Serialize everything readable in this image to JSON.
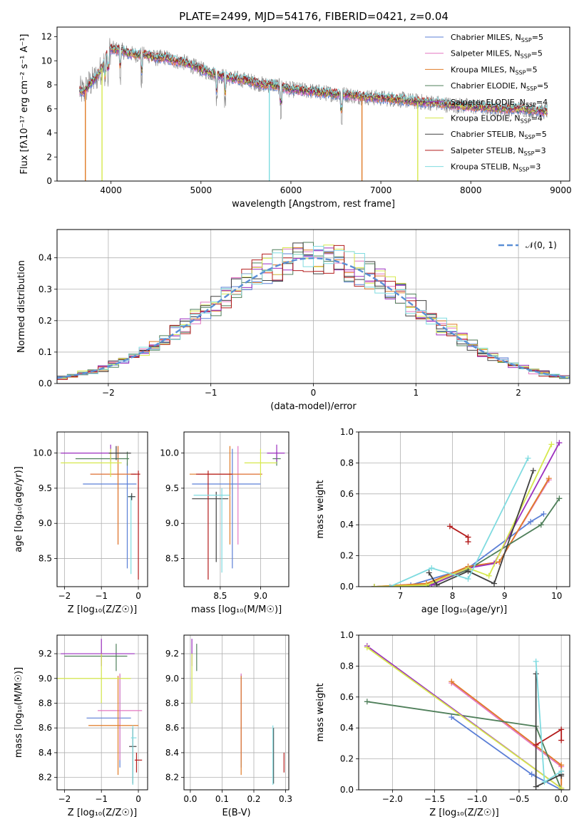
{
  "figure_title": "PLATE=2499, MJD=54176, FIBERID=0421, z=0.04",
  "models": [
    {
      "name": "Chabrier MILES",
      "nssp": "5",
      "color": "#5b7fd6"
    },
    {
      "name": "Salpeter MILES",
      "nssp": "5",
      "color": "#e377c2"
    },
    {
      "name": "Kroupa MILES",
      "nssp": "5",
      "color": "#e07b27"
    },
    {
      "name": "Chabrier ELODIE",
      "nssp": "5",
      "color": "#4f7f5a"
    },
    {
      "name": "Salpeter ELODIE",
      "nssp": "4",
      "color": "#9b2fbf"
    },
    {
      "name": "Kroupa ELODIE",
      "nssp": "4",
      "color": "#d6e84c"
    },
    {
      "name": "Chabrier STELIB",
      "nssp": "5",
      "color": "#404040"
    },
    {
      "name": "Salpeter STELIB",
      "nssp": "3",
      "color": "#b31b1b"
    },
    {
      "name": "Kroupa STELIB",
      "nssp": "3",
      "color": "#7fdbe0"
    }
  ],
  "nssp_label": "N",
  "nssp_sub": "SSP",
  "data_color": "#7f7f7f",
  "chart_data": [
    {
      "id": "spectrum",
      "type": "line",
      "xlabel": "wavelength [Angstrom, rest frame]",
      "ylabel": "Flux [fλ10⁻¹⁷ erg cm⁻² s⁻¹ A⁻¹]",
      "xlim": [
        3400,
        9100
      ],
      "ylim": [
        0,
        12.8
      ],
      "xticks": [
        4000,
        5000,
        6000,
        7000,
        8000,
        9000
      ],
      "yticks": [
        0,
        2,
        4,
        6,
        8,
        10,
        12
      ],
      "continuum": {
        "x": [
          3650,
          3700,
          3750,
          3800,
          3850,
          3900,
          3950,
          4000,
          4100,
          4200,
          4300,
          4400,
          4500,
          4600,
          4700,
          4800,
          4900,
          5000,
          5100,
          5200,
          5300,
          5400,
          5500,
          5600,
          5700,
          5800,
          5900,
          6000,
          6200,
          6400,
          6600,
          6800,
          7000,
          7200,
          7400,
          7600,
          7800,
          8000,
          8200,
          8400,
          8600,
          8800
        ],
        "y": [
          7.5,
          7.4,
          8.0,
          8.3,
          8.8,
          9.4,
          10.4,
          11.0,
          10.9,
          10.6,
          10.5,
          10.5,
          10.2,
          10.3,
          10.0,
          9.9,
          9.6,
          9.3,
          9.0,
          8.8,
          8.6,
          8.5,
          8.4,
          8.2,
          8.0,
          8.0,
          7.8,
          7.6,
          7.5,
          7.3,
          7.2,
          7.0,
          6.9,
          6.8,
          6.6,
          6.5,
          6.3,
          6.2,
          6.1,
          6.0,
          6.0,
          5.8
        ]
      },
      "absorption_lines": [
        3934,
        3969,
        4102,
        4340,
        5175,
        5269,
        5890,
        6563
      ],
      "masked_drops": [
        3715,
        3900,
        5760,
        6790,
        7410
      ]
    },
    {
      "id": "residuals",
      "type": "histogram",
      "xlabel": "(data-model)/error",
      "ylabel": "Normed distribution",
      "xlim": [
        -2.5,
        2.5
      ],
      "ylim": [
        0,
        0.49
      ],
      "xticks": [
        -2,
        -1,
        0,
        1,
        2
      ],
      "yticks": [
        0.0,
        0.1,
        0.2,
        0.3,
        0.4
      ],
      "bin_width": 0.1,
      "reference_curve": "N(0,1)",
      "legend_label": "𝒩(0, 1)",
      "legend_loc": "upper right"
    },
    {
      "id": "age-vs-Z",
      "type": "errorbar",
      "xlabel": "Z [log₁₀(Z/Z☉)]",
      "ylabel": "age  [log₁₀(age/yr)]",
      "xlim": [
        -2.2,
        0.25
      ],
      "ylim": [
        8.1,
        10.3
      ],
      "xticks": [
        -2,
        -1,
        0
      ],
      "yticks": [
        8.5,
        9.0,
        9.5,
        10.0
      ],
      "points": [
        {
          "model": 0,
          "x": -0.3,
          "y": 9.56,
          "xerr": [
            1.2,
            0.25
          ],
          "yerr": [
            1.2,
            0.3
          ]
        },
        {
          "model": 1,
          "x": -0.55,
          "y": 9.7,
          "xerr": [
            0.75,
            0.5
          ],
          "yerr": [
            1.0,
            0.4
          ]
        },
        {
          "model": 2,
          "x": -0.55,
          "y": 9.7,
          "xerr": [
            0.75,
            0.5
          ],
          "yerr": [
            1.0,
            0.4
          ]
        },
        {
          "model": 3,
          "x": -0.3,
          "y": 9.92,
          "xerr": [
            1.4,
            0.05
          ],
          "yerr": [
            0.1,
            0.1
          ]
        },
        {
          "model": 4,
          "x": -0.75,
          "y": 10.0,
          "xerr": [
            1.35,
            0.05
          ],
          "yerr": [
            0.12,
            0.12
          ]
        },
        {
          "model": 5,
          "x": -0.75,
          "y": 9.86,
          "xerr": [
            1.35,
            0.3
          ],
          "yerr": [
            0.2,
            0.2
          ]
        },
        {
          "model": 6,
          "x": -0.6,
          "y": 10.0,
          "xerr": [
            0.2,
            0.4
          ],
          "yerr": [
            0.1,
            0.1
          ]
        },
        {
          "model": 7,
          "x": 0.0,
          "y": 9.7,
          "xerr": [
            0.2,
            0.05
          ],
          "yerr": [
            1.5,
            0.05
          ]
        },
        {
          "model": 8,
          "x": -0.2,
          "y": 9.38,
          "xerr": [
            0.1,
            0.1
          ],
          "yerr": [
            1.1,
            0.02
          ]
        },
        {
          "model": 6,
          "x": -0.18,
          "y": 9.38,
          "xerr": [
            0.1,
            0.1
          ],
          "yerr": [
            0.05,
            0.05
          ]
        }
      ]
    },
    {
      "id": "age-vs-mass",
      "type": "errorbar",
      "xlabel": "mass [log₁₀(M/M☉)]",
      "ylabel": "",
      "xlim": [
        8.05,
        9.35
      ],
      "ylim": [
        8.1,
        10.3
      ],
      "xticks": [
        8.5,
        9.0
      ],
      "yticks": [
        8.5,
        9.0,
        9.5,
        10.0
      ],
      "points": [
        {
          "model": 0,
          "x": 8.65,
          "y": 9.56,
          "xerr": [
            0.5,
            0.35
          ],
          "yerr": [
            1.2,
            0.5
          ]
        },
        {
          "model": 1,
          "x": 8.72,
          "y": 9.7,
          "xerr": [
            0.5,
            0.3
          ],
          "yerr": [
            1.0,
            0.4
          ]
        },
        {
          "model": 2,
          "x": 8.62,
          "y": 9.7,
          "xerr": [
            0.5,
            0.4
          ],
          "yerr": [
            1.0,
            0.4
          ]
        },
        {
          "model": 3,
          "x": 9.2,
          "y": 9.92,
          "xerr": [
            0.05,
            0.05
          ],
          "yerr": [
            0.1,
            0.1
          ]
        },
        {
          "model": 4,
          "x": 9.2,
          "y": 10.0,
          "xerr": [
            0.12,
            0.1
          ],
          "yerr": [
            0.12,
            0.12
          ]
        },
        {
          "model": 5,
          "x": 9.0,
          "y": 9.86,
          "xerr": [
            0.2,
            0.2
          ],
          "yerr": [
            0.2,
            0.2
          ]
        },
        {
          "model": 6,
          "x": 8.45,
          "y": 9.35,
          "xerr": [
            0.3,
            0.15
          ],
          "yerr": [
            0.9,
            0.1
          ]
        },
        {
          "model": 7,
          "x": 8.35,
          "y": 9.7,
          "xerr": [
            0.15,
            0.3
          ],
          "yerr": [
            1.5,
            0.05
          ]
        },
        {
          "model": 8,
          "x": 8.52,
          "y": 9.4,
          "xerr": [
            0.35,
            0.1
          ],
          "yerr": [
            1.1,
            0.1
          ]
        }
      ]
    },
    {
      "id": "mass-weight-vs-age",
      "type": "line",
      "xlabel": "age  [log₁₀(age/yr)]",
      "ylabel": "mass weight",
      "xlim": [
        6.2,
        10.25
      ],
      "ylim": [
        0,
        1.0
      ],
      "xticks": [
        7,
        8,
        9,
        10
      ],
      "yticks": [
        0.0,
        0.2,
        0.4,
        0.6,
        0.8,
        1.0
      ],
      "series": [
        {
          "model": 0,
          "x": [
            6.5,
            7.2,
            8.3,
            9.5,
            9.75
          ],
          "y": [
            0.0,
            0.01,
            0.12,
            0.42,
            0.47
          ]
        },
        {
          "model": 1,
          "x": [
            6.5,
            7.5,
            8.3,
            8.9,
            9.85
          ],
          "y": [
            0.0,
            0.02,
            0.13,
            0.16,
            0.69
          ]
        },
        {
          "model": 2,
          "x": [
            6.5,
            7.5,
            8.3,
            8.9,
            9.85
          ],
          "y": [
            0.0,
            0.02,
            0.13,
            0.16,
            0.7
          ]
        },
        {
          "model": 3,
          "x": [
            6.5,
            7.5,
            8.3,
            9.7,
            10.05
          ],
          "y": [
            0.0,
            0.0,
            0.11,
            0.4,
            0.57
          ]
        },
        {
          "model": 4,
          "x": [
            7.6,
            8.3,
            8.8,
            10.05
          ],
          "y": [
            0.01,
            0.12,
            0.15,
            0.93
          ]
        },
        {
          "model": 5,
          "x": [
            6.5,
            7.5,
            8.3,
            8.7,
            9.9
          ],
          "y": [
            0.0,
            0.01,
            0.12,
            0.07,
            0.92
          ]
        },
        {
          "model": 6,
          "x": [
            7.55,
            7.7,
            8.3,
            8.8,
            9.55
          ],
          "y": [
            0.09,
            0.01,
            0.1,
            0.02,
            0.75
          ]
        },
        {
          "model": 7,
          "x": [
            7.95,
            8.3,
            8.3
          ],
          "y": [
            0.39,
            0.32,
            0.29
          ]
        },
        {
          "model": 8,
          "x": [
            6.8,
            7.6,
            8.3,
            9.45
          ],
          "y": [
            0.0,
            0.12,
            0.05,
            0.83
          ]
        }
      ]
    },
    {
      "id": "mass-vs-Z",
      "type": "errorbar",
      "xlabel": "Z [log₁₀(Z/Z☉)]",
      "ylabel": "mass [log₁₀(M/M☉)]",
      "xlim": [
        -2.2,
        0.25
      ],
      "ylim": [
        8.1,
        9.35
      ],
      "xticks": [
        -2,
        -1,
        0
      ],
      "yticks": [
        8.2,
        8.4,
        8.6,
        8.8,
        9.0,
        9.2
      ],
      "points": [
        {
          "model": 0,
          "x": -0.5,
          "y": 8.68,
          "xerr": [
            0.9,
            0.3
          ],
          "yerr": [
            0.4,
            0.35
          ]
        },
        {
          "model": 1,
          "x": -0.5,
          "y": 8.74,
          "xerr": [
            0.6,
            0.6
          ],
          "yerr": [
            0.4,
            0.3
          ]
        },
        {
          "model": 2,
          "x": -0.55,
          "y": 8.62,
          "xerr": [
            0.8,
            0.55
          ],
          "yerr": [
            0.4,
            0.4
          ]
        },
        {
          "model": 3,
          "x": -0.6,
          "y": 9.18,
          "xerr": [
            1.4,
            0.3
          ],
          "yerr": [
            0.12,
            0.1
          ]
        },
        {
          "model": 4,
          "x": -1.0,
          "y": 9.2,
          "xerr": [
            1.1,
            0.9
          ],
          "yerr": [
            0.1,
            0.12
          ]
        },
        {
          "model": 5,
          "x": -1.0,
          "y": 9.0,
          "xerr": [
            1.2,
            0.8
          ],
          "yerr": [
            0.2,
            0.2
          ]
        },
        {
          "model": 6,
          "x": -0.15,
          "y": 8.45,
          "xerr": [
            0.1,
            0.1
          ],
          "yerr": [
            0.3,
            0.15
          ]
        },
        {
          "model": 7,
          "x": -0.05,
          "y": 8.34,
          "xerr": [
            0.05,
            0.15
          ],
          "yerr": [
            0.1,
            0.06
          ]
        },
        {
          "model": 8,
          "x": -0.15,
          "y": 8.52,
          "xerr": [
            0.05,
            0.1
          ],
          "yerr": [
            0.38,
            0.1
          ]
        }
      ]
    },
    {
      "id": "mass-vs-ebv",
      "type": "errorbar",
      "xlabel": "E(B-V)",
      "ylabel": "",
      "xlim": [
        -0.02,
        0.31
      ],
      "ylim": [
        8.1,
        9.35
      ],
      "xticks": [
        0.0,
        0.1,
        0.2,
        0.3
      ],
      "yticks": [
        8.2,
        8.4,
        8.6,
        8.8,
        9.0,
        9.2
      ],
      "points": [
        {
          "model": 0,
          "x": 0.16,
          "y": 8.68,
          "xerr": [
            0,
            0
          ],
          "yerr": [
            0.4,
            0.35
          ]
        },
        {
          "model": 1,
          "x": 0.16,
          "y": 8.74,
          "xerr": [
            0,
            0
          ],
          "yerr": [
            0.4,
            0.3
          ]
        },
        {
          "model": 2,
          "x": 0.16,
          "y": 8.62,
          "xerr": [
            0,
            0
          ],
          "yerr": [
            0.4,
            0.4
          ]
        },
        {
          "model": 3,
          "x": 0.02,
          "y": 9.18,
          "xerr": [
            0,
            0
          ],
          "yerr": [
            0.12,
            0.1
          ]
        },
        {
          "model": 4,
          "x": 0.005,
          "y": 9.2,
          "xerr": [
            0,
            0
          ],
          "yerr": [
            0.1,
            0.12
          ]
        },
        {
          "model": 5,
          "x": 0.005,
          "y": 9.0,
          "xerr": [
            0,
            0
          ],
          "yerr": [
            0.2,
            0.2
          ]
        },
        {
          "model": 6,
          "x": 0.262,
          "y": 8.45,
          "xerr": [
            0,
            0
          ],
          "yerr": [
            0.3,
            0.15
          ]
        },
        {
          "model": 7,
          "x": 0.295,
          "y": 8.34,
          "xerr": [
            0,
            0
          ],
          "yerr": [
            0.1,
            0.06
          ]
        },
        {
          "model": 8,
          "x": 0.26,
          "y": 8.52,
          "xerr": [
            0,
            0
          ],
          "yerr": [
            0.38,
            0.1
          ]
        }
      ]
    },
    {
      "id": "mass-weight-vs-Z",
      "type": "line",
      "xlabel": "Z [log₁₀(Z/Z☉)]",
      "ylabel": "mass weight",
      "xlim": [
        -2.4,
        0.1
      ],
      "ylim": [
        0,
        1.0
      ],
      "xticks": [
        -2.0,
        -1.5,
        -1.0,
        -0.5,
        0.0
      ],
      "yticks": [
        0.0,
        0.2,
        0.4,
        0.6,
        0.8,
        1.0
      ],
      "series": [
        {
          "model": 0,
          "x": [
            -1.3,
            -0.35,
            0.0
          ],
          "y": [
            0.47,
            0.1,
            0.0
          ]
        },
        {
          "model": 1,
          "x": [
            -1.3,
            0.0,
            0.0
          ],
          "y": [
            0.69,
            0.15,
            0.0
          ]
        },
        {
          "model": 2,
          "x": [
            -1.3,
            0.0,
            0.0
          ],
          "y": [
            0.7,
            0.16,
            0.0
          ]
        },
        {
          "model": 3,
          "x": [
            -2.3,
            -0.3,
            0.0
          ],
          "y": [
            0.57,
            0.41,
            0.0
          ]
        },
        {
          "model": 4,
          "x": [
            -2.3,
            0.0
          ],
          "y": [
            0.93,
            0.01
          ]
        },
        {
          "model": 5,
          "x": [
            -2.3,
            0.0
          ],
          "y": [
            0.92,
            0.01
          ]
        },
        {
          "model": 6,
          "x": [
            -0.3,
            -0.3,
            0.0,
            0.0
          ],
          "y": [
            0.75,
            0.02,
            0.1,
            0.09
          ]
        },
        {
          "model": 7,
          "x": [
            -0.3,
            0.0,
            0.0
          ],
          "y": [
            0.29,
            0.39,
            0.32
          ]
        },
        {
          "model": 8,
          "x": [
            -0.3,
            -0.2,
            0.0
          ],
          "y": [
            0.83,
            0.05,
            0.12
          ]
        }
      ]
    }
  ]
}
